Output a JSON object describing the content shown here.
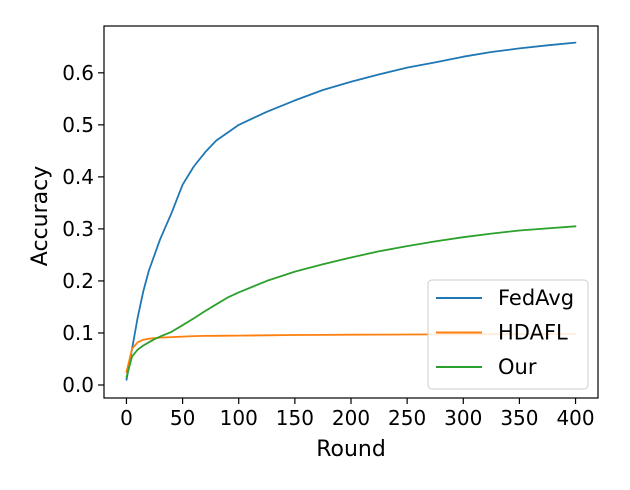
{
  "chart_data": {
    "type": "line",
    "title": "",
    "xlabel": "Round",
    "ylabel": "Accuracy",
    "xlim": [
      -20,
      420
    ],
    "ylim": [
      -0.025,
      0.69
    ],
    "xticks": [
      0,
      50,
      100,
      150,
      200,
      250,
      300,
      350,
      400
    ],
    "xtick_labels": [
      "0",
      "50",
      "100",
      "150",
      "200",
      "250",
      "300",
      "350",
      "400"
    ],
    "yticks": [
      0.0,
      0.1,
      0.2,
      0.3,
      0.4,
      0.5,
      0.6
    ],
    "ytick_labels": [
      "0.0",
      "0.1",
      "0.2",
      "0.3",
      "0.4",
      "0.5",
      "0.6"
    ],
    "grid": false,
    "legend": {
      "placement": "lower-right"
    },
    "x": [
      0,
      5,
      10,
      15,
      20,
      25,
      30,
      40,
      50,
      60,
      70,
      80,
      90,
      100,
      125,
      150,
      175,
      200,
      225,
      250,
      275,
      300,
      325,
      350,
      375,
      400
    ],
    "series": [
      {
        "name": "FedAvg",
        "color": "#1f77b4",
        "values": [
          0.01,
          0.07,
          0.13,
          0.18,
          0.22,
          0.25,
          0.28,
          0.33,
          0.385,
          0.42,
          0.447,
          0.47,
          0.485,
          0.5,
          0.525,
          0.547,
          0.567,
          0.583,
          0.597,
          0.61,
          0.62,
          0.631,
          0.64,
          0.647,
          0.653,
          0.658
        ]
      },
      {
        "name": "HDAFL",
        "color": "#ff7f0e",
        "values": [
          0.025,
          0.07,
          0.082,
          0.087,
          0.089,
          0.09,
          0.091,
          0.092,
          0.093,
          0.094,
          0.0943,
          0.0946,
          0.0948,
          0.095,
          0.0955,
          0.096,
          0.0963,
          0.0966,
          0.0968,
          0.097,
          0.0972,
          0.0974,
          0.0976,
          0.0978,
          0.098,
          0.0982
        ]
      },
      {
        "name": "Our",
        "color": "#2ca02c",
        "values": [
          0.015,
          0.055,
          0.068,
          0.076,
          0.082,
          0.088,
          0.093,
          0.102,
          0.115,
          0.128,
          0.142,
          0.155,
          0.168,
          0.178,
          0.2,
          0.218,
          0.232,
          0.245,
          0.257,
          0.267,
          0.276,
          0.284,
          0.291,
          0.297,
          0.301,
          0.305
        ]
      }
    ]
  }
}
